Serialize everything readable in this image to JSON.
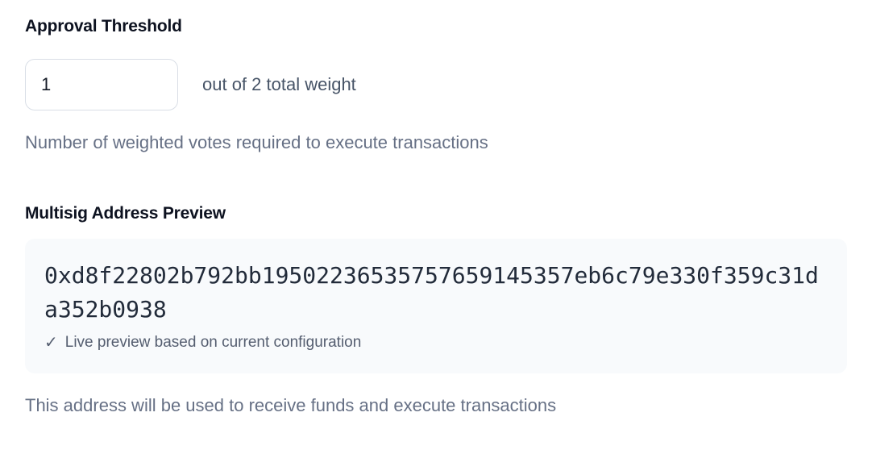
{
  "colors": {
    "page_bg": "#ffffff",
    "heading_text": "#0d1220",
    "suffix_text": "#475467",
    "muted_text": "#667085",
    "address_text": "#222b3a",
    "preview_box_bg": "#f8fafc",
    "input_border": "#d9dee6"
  },
  "approval_threshold": {
    "label": "Approval Threshold",
    "input_value": "1",
    "suffix": "out of 2 total weight",
    "help": "Number of weighted votes required to execute transactions"
  },
  "multisig_preview": {
    "label": "Multisig Address Preview",
    "address": "0xd8f22802b792bb19502236535757659145357eb6c79e330f359c31da352b0938",
    "check_icon": "✓",
    "note": "Live preview based on current configuration",
    "help": "This address will be used to receive funds and execute transactions"
  }
}
